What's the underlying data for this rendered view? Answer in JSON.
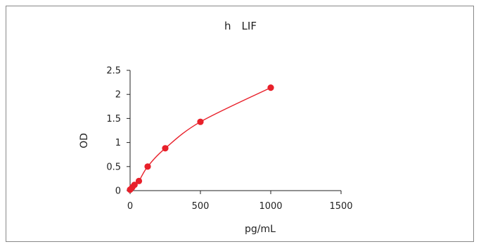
{
  "chart_data": {
    "type": "scatter",
    "title": "h　LIF",
    "xlabel": "pg/mL",
    "ylabel": "OD",
    "xlim": [
      0,
      1500
    ],
    "ylim": [
      0,
      2.5
    ],
    "x_ticks": [
      "0",
      "500",
      "1000",
      "1500"
    ],
    "y_ticks": [
      "0",
      "0.5",
      "1",
      "1.5",
      "2",
      "2.5"
    ],
    "grid": false,
    "legend": "none",
    "series": [
      {
        "x": [
          0,
          15.6,
          31.25,
          62.5,
          125,
          250,
          500,
          1000
        ],
        "y": [
          0.02,
          0.07,
          0.12,
          0.2,
          0.5,
          0.88,
          1.43,
          2.14
        ],
        "color": "#e8202a",
        "fit_curve": true
      }
    ]
  }
}
